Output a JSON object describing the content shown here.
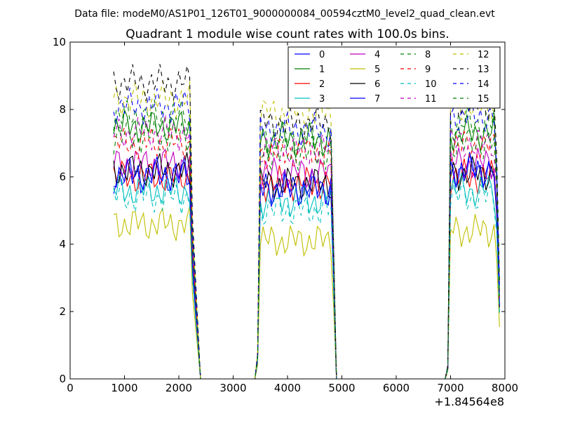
{
  "suptitle": "Data file: modeM0/AS1P01_126T01_9000000084_00594cztM0_level2_quad_clean.evt",
  "chart_data": {
    "type": "line",
    "title": "Quadrant 1 module wise count rates with 100.0s bins.",
    "xlabel": "",
    "ylabel": "",
    "x_offset_label": "+1.84564e8",
    "xlim": [
      0,
      8000
    ],
    "ylim": [
      0,
      10
    ],
    "xticks": [
      0,
      1000,
      2000,
      3000,
      4000,
      5000,
      6000,
      7000,
      8000
    ],
    "yticks": [
      0,
      2,
      4,
      6,
      8,
      10
    ],
    "grid": false,
    "legend": {
      "placement": "top-right",
      "columns": 4
    },
    "segments": [
      {
        "x_start": 800,
        "x_end": 2200
      },
      {
        "x_start": 3500,
        "x_end": 4800
      },
      {
        "x_start": 7000,
        "x_end": 7800
      }
    ],
    "zero_points": [
      2400,
      2500,
      3000,
      3400,
      4900,
      5000,
      6000,
      6900
    ],
    "series": [
      {
        "name": "0",
        "color": "#0000ff",
        "dash": "solid",
        "levels": [
          6.0,
          5.7,
          6.2
        ]
      },
      {
        "name": "1",
        "color": "#008000",
        "dash": "solid",
        "levels": [
          7.5,
          7.1,
          7.3
        ]
      },
      {
        "name": "2",
        "color": "#ff0000",
        "dash": "solid",
        "levels": [
          6.0,
          5.8,
          6.0
        ]
      },
      {
        "name": "3",
        "color": "#00bfbf",
        "dash": "solid",
        "levels": [
          5.6,
          5.3,
          5.6
        ]
      },
      {
        "name": "4",
        "color": "#bf00bf",
        "dash": "solid",
        "levels": [
          6.4,
          6.1,
          6.4
        ]
      },
      {
        "name": "5",
        "color": "#bfbf00",
        "dash": "solid",
        "levels": [
          4.6,
          4.1,
          4.4
        ]
      },
      {
        "name": "6",
        "color": "#000000",
        "dash": "solid",
        "levels": [
          6.2,
          5.8,
          6.1
        ]
      },
      {
        "name": "7",
        "color": "#0000ff",
        "dash": "solid",
        "levels": [
          6.1,
          5.6,
          6.2
        ]
      },
      {
        "name": "8",
        "color": "#008000",
        "dash": "dashed",
        "levels": [
          7.8,
          7.2,
          7.6
        ]
      },
      {
        "name": "9",
        "color": "#ff0000",
        "dash": "dashed",
        "levels": [
          7.0,
          6.7,
          6.9
        ]
      },
      {
        "name": "10",
        "color": "#00bfbf",
        "dash": "dashed",
        "levels": [
          5.4,
          5.0,
          5.4
        ]
      },
      {
        "name": "11",
        "color": "#bf00bf",
        "dash": "dashed",
        "levels": [
          7.3,
          6.8,
          7.0
        ]
      },
      {
        "name": "12",
        "color": "#bfbf00",
        "dash": "dashed",
        "levels": [
          8.3,
          7.9,
          8.1
        ]
      },
      {
        "name": "13",
        "color": "#000000",
        "dash": "dashed",
        "levels": [
          8.8,
          7.6,
          8.2
        ]
      },
      {
        "name": "14",
        "color": "#0000ff",
        "dash": "dashed",
        "levels": [
          8.1,
          7.4,
          7.8
        ]
      },
      {
        "name": "15",
        "color": "#008000",
        "dash": "dashed",
        "levels": [
          7.2,
          6.7,
          7.0
        ]
      }
    ]
  }
}
